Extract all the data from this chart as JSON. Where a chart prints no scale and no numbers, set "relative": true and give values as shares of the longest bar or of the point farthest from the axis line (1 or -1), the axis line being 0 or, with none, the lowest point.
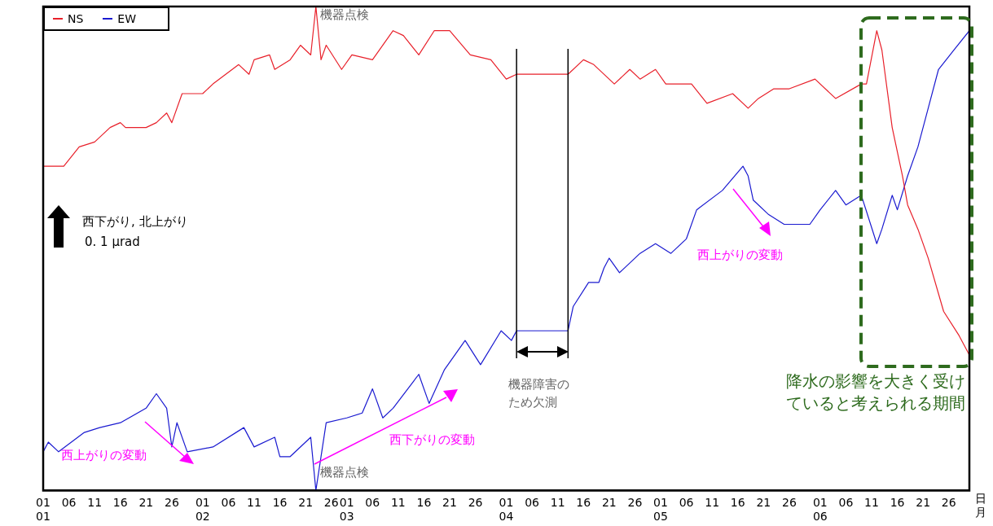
{
  "chart_data": {
    "type": "line",
    "relative": true,
    "xlabel": "日月",
    "legend": "top left",
    "xlim": [
      "--01-01",
      "--06-30"
    ],
    "xticks": [
      {
        "value": "--01-01",
        "label": "01\n01"
      },
      {
        "value": "--01-06",
        "label": "06"
      },
      {
        "value": "--01-11",
        "label": "11"
      },
      {
        "value": "--01-16",
        "label": "16"
      },
      {
        "value": "--01-21",
        "label": "21"
      },
      {
        "value": "--01-26",
        "label": "26"
      },
      {
        "value": "--02-01",
        "label": "01\n02"
      },
      {
        "value": "--02-06",
        "label": "06"
      },
      {
        "value": "--02-11",
        "label": "11"
      },
      {
        "value": "--02-16",
        "label": "16"
      },
      {
        "value": "--02-21",
        "label": "21"
      },
      {
        "value": "--02-26",
        "label": "26"
      },
      {
        "value": "--03-01",
        "label": "01\n03"
      },
      {
        "value": "--03-06",
        "label": "06"
      },
      {
        "value": "--03-11",
        "label": "11"
      },
      {
        "value": "--03-16",
        "label": "16"
      },
      {
        "value": "--03-21",
        "label": "21"
      },
      {
        "value": "--03-26",
        "label": "26"
      },
      {
        "value": "--04-01",
        "label": "01\n04"
      },
      {
        "value": "--04-06",
        "label": "06"
      },
      {
        "value": "--04-11",
        "label": "11"
      },
      {
        "value": "--04-16",
        "label": "16"
      },
      {
        "value": "--04-21",
        "label": "21"
      },
      {
        "value": "--04-26",
        "label": "26"
      },
      {
        "value": "--05-01",
        "label": "01\n05"
      },
      {
        "value": "--05-06",
        "label": "06"
      },
      {
        "value": "--05-11",
        "label": "11"
      },
      {
        "value": "--05-16",
        "label": "16"
      },
      {
        "value": "--05-21",
        "label": "21"
      },
      {
        "value": "--05-26",
        "label": "26"
      },
      {
        "value": "--06-01",
        "label": "01\n06"
      },
      {
        "value": "--06-06",
        "label": "06"
      },
      {
        "value": "--06-11",
        "label": "11"
      },
      {
        "value": "--06-16",
        "label": "16"
      },
      {
        "value": "--06-21",
        "label": "21"
      },
      {
        "value": "--06-26",
        "label": "26"
      }
    ],
    "marker": "none",
    "series": [
      {
        "name": "NS",
        "color": "#e8202a",
        "x": [
          "--01-01",
          "--01-05",
          "--01-08",
          "--01-11",
          "--01-14",
          "--01-16",
          "--01-17",
          "--01-21",
          "--01-23",
          "--01-25",
          "--01-26",
          "--01-28",
          "--02-01",
          "--02-03",
          "--02-08",
          "--02-10",
          "--02-11",
          "--02-14",
          "--02-15",
          "--02-18",
          "--02-20",
          "--02-22",
          "--02-23",
          "--02-24",
          "--02-25",
          "--02-28",
          "--03-02",
          "--03-06",
          "--03-10",
          "--03-12",
          "--03-15",
          "--03-18",
          "--03-21",
          "--03-25",
          "--03-29",
          "--04-01",
          "--04-03",
          "--04-13",
          "--04-16",
          "--04-18",
          "--04-22",
          "--04-25",
          "--04-27",
          "--04-30",
          "--05-02",
          "--05-07",
          "--05-10",
          "--05-15",
          "--05-18",
          "--05-20",
          "--05-23",
          "--05-26",
          "--05-31",
          "--06-04",
          "--06-09",
          "--06-10",
          "--06-12",
          "--06-13",
          "--06-15",
          "--06-17",
          "--06-18",
          "--06-20",
          "--06-22",
          "--06-25",
          "--06-28",
          "--06-30"
        ],
        "values": [
          0.67,
          0.67,
          0.71,
          0.72,
          0.75,
          0.76,
          0.75,
          0.75,
          0.76,
          0.78,
          0.76,
          0.82,
          0.82,
          0.84,
          0.88,
          0.86,
          0.89,
          0.9,
          0.87,
          0.89,
          0.92,
          0.9,
          1.0,
          0.89,
          0.92,
          0.87,
          0.9,
          0.89,
          0.95,
          0.94,
          0.9,
          0.95,
          0.95,
          0.9,
          0.89,
          0.85,
          0.86,
          0.86,
          0.89,
          0.88,
          0.84,
          0.87,
          0.85,
          0.87,
          0.84,
          0.84,
          0.8,
          0.82,
          0.79,
          0.81,
          0.83,
          0.83,
          0.85,
          0.81,
          0.84,
          0.84,
          0.95,
          0.91,
          0.75,
          0.65,
          0.59,
          0.54,
          0.48,
          0.37,
          0.32,
          0.28
        ]
      },
      {
        "name": "EW",
        "color": "#1a1ad0",
        "x": [
          "--01-01",
          "--01-02",
          "--01-04",
          "--01-09",
          "--01-12",
          "--01-16",
          "--01-21",
          "--01-23",
          "--01-25",
          "--01-26",
          "--01-27",
          "--01-29",
          "--02-03",
          "--02-09",
          "--02-11",
          "--02-15",
          "--02-16",
          "--02-18",
          "--02-22",
          "--02-23",
          "--02-25",
          "--03-01",
          "--03-04",
          "--03-06",
          "--03-08",
          "--03-10",
          "--03-15",
          "--03-17",
          "--03-20",
          "--03-24",
          "--03-27",
          "--03-31",
          "--04-02",
          "--04-03",
          "--04-13",
          "--04-14",
          "--04-17",
          "--04-19",
          "--04-20",
          "--04-21",
          "--04-23",
          "--04-27",
          "--04-30",
          "--05-03",
          "--05-06",
          "--05-08",
          "--05-13",
          "--05-17",
          "--05-18",
          "--05-19",
          "--05-22",
          "--05-25",
          "--05-30",
          "--06-01",
          "--06-04",
          "--06-06",
          "--06-09",
          "--06-12",
          "--06-13",
          "--06-15",
          "--06-16",
          "--06-18",
          "--06-20",
          "--06-22",
          "--06-24",
          "--06-27",
          "--06-30"
        ],
        "values": [
          0.08,
          0.1,
          0.08,
          0.12,
          0.13,
          0.14,
          0.17,
          0.2,
          0.17,
          0.09,
          0.14,
          0.08,
          0.09,
          0.13,
          0.09,
          0.11,
          0.07,
          0.07,
          0.11,
          0.0,
          0.14,
          0.15,
          0.16,
          0.21,
          0.15,
          0.17,
          0.24,
          0.18,
          0.25,
          0.31,
          0.26,
          0.33,
          0.31,
          0.33,
          0.33,
          0.38,
          0.43,
          0.43,
          0.46,
          0.48,
          0.45,
          0.49,
          0.51,
          0.49,
          0.52,
          0.58,
          0.62,
          0.67,
          0.65,
          0.6,
          0.57,
          0.55,
          0.55,
          0.58,
          0.62,
          0.59,
          0.61,
          0.51,
          0.54,
          0.61,
          0.58,
          0.65,
          0.71,
          0.79,
          0.87,
          0.91,
          0.95
        ]
      }
    ],
    "ref_lines": [
      {
        "axis": "x",
        "value": "--04-03",
        "label": null,
        "color": "#000000"
      },
      {
        "axis": "x",
        "value": "--04-13",
        "label": null,
        "color": "#000000"
      }
    ],
    "annotations": [
      "機器点検",
      "機器点検",
      "機器障害のため欠測",
      "西上がりの変動",
      "西下がりの変動",
      "西上がりの変動",
      "西下がり, 北上がり",
      "0. 1 μrad",
      "降水の影響を大きく受けていると考えられる期間"
    ]
  }
}
